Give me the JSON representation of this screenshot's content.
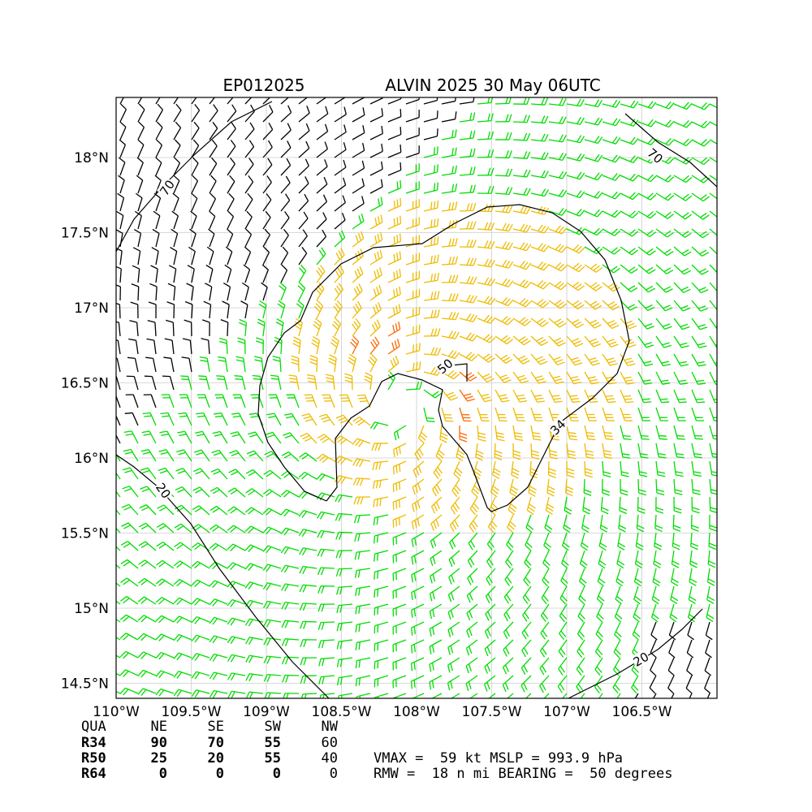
{
  "title": {
    "storm_id": "EP012025",
    "storm_info": "ALVIN 2025 30 May 06UTC"
  },
  "map": {
    "lon_range": [
      -110.0,
      -106.0
    ],
    "lat_range": [
      14.4,
      18.4
    ],
    "center": {
      "lon": -108.1,
      "lat": 16.35
    },
    "x_ticks": [
      {
        "value": -110.0,
        "label": "110°W"
      },
      {
        "value": -109.5,
        "label": "109.5°W"
      },
      {
        "value": -109.0,
        "label": "109°W"
      },
      {
        "value": -108.5,
        "label": "108.5°W"
      },
      {
        "value": -108.0,
        "label": "108°W"
      },
      {
        "value": -107.5,
        "label": "107.5°W"
      },
      {
        "value": -107.0,
        "label": "107°W"
      },
      {
        "value": -106.5,
        "label": "106.5°W"
      }
    ],
    "y_ticks": [
      {
        "value": 18.0,
        "label": "18°N"
      },
      {
        "value": 17.5,
        "label": "17.5°N"
      },
      {
        "value": 17.0,
        "label": "17°N"
      },
      {
        "value": 16.5,
        "label": "16.5°N"
      },
      {
        "value": 16.0,
        "label": "16°N"
      },
      {
        "value": 15.5,
        "label": "15.5°N"
      },
      {
        "value": 15.0,
        "label": "15°N"
      },
      {
        "value": 14.5,
        "label": "14.5°N"
      }
    ],
    "grid": true,
    "contour_labels": [
      "70",
      "70",
      "50",
      "34",
      "20",
      "20"
    ],
    "barb_colors": {
      "calm": "#000000",
      "r34": "#00dd00",
      "r50": "#eebb00",
      "r64": "#ff6600",
      "contour": "#000000"
    }
  },
  "wind_radii": {
    "headers": [
      "QUA",
      "NE",
      "SE",
      "SW",
      "NW"
    ],
    "rows": [
      {
        "label": "R34",
        "values": [
          "90",
          "70",
          "55",
          "60"
        ]
      },
      {
        "label": "R50",
        "values": [
          "25",
          "20",
          "55",
          "40"
        ]
      },
      {
        "label": "R64",
        "values": [
          "0",
          "0",
          "0",
          "0"
        ]
      }
    ]
  },
  "summary": {
    "line1": "VMAX =  59 kt MSLP = 993.9 hPa",
    "line2": "RMW =  18 n mi BEARING =  50 degrees"
  }
}
